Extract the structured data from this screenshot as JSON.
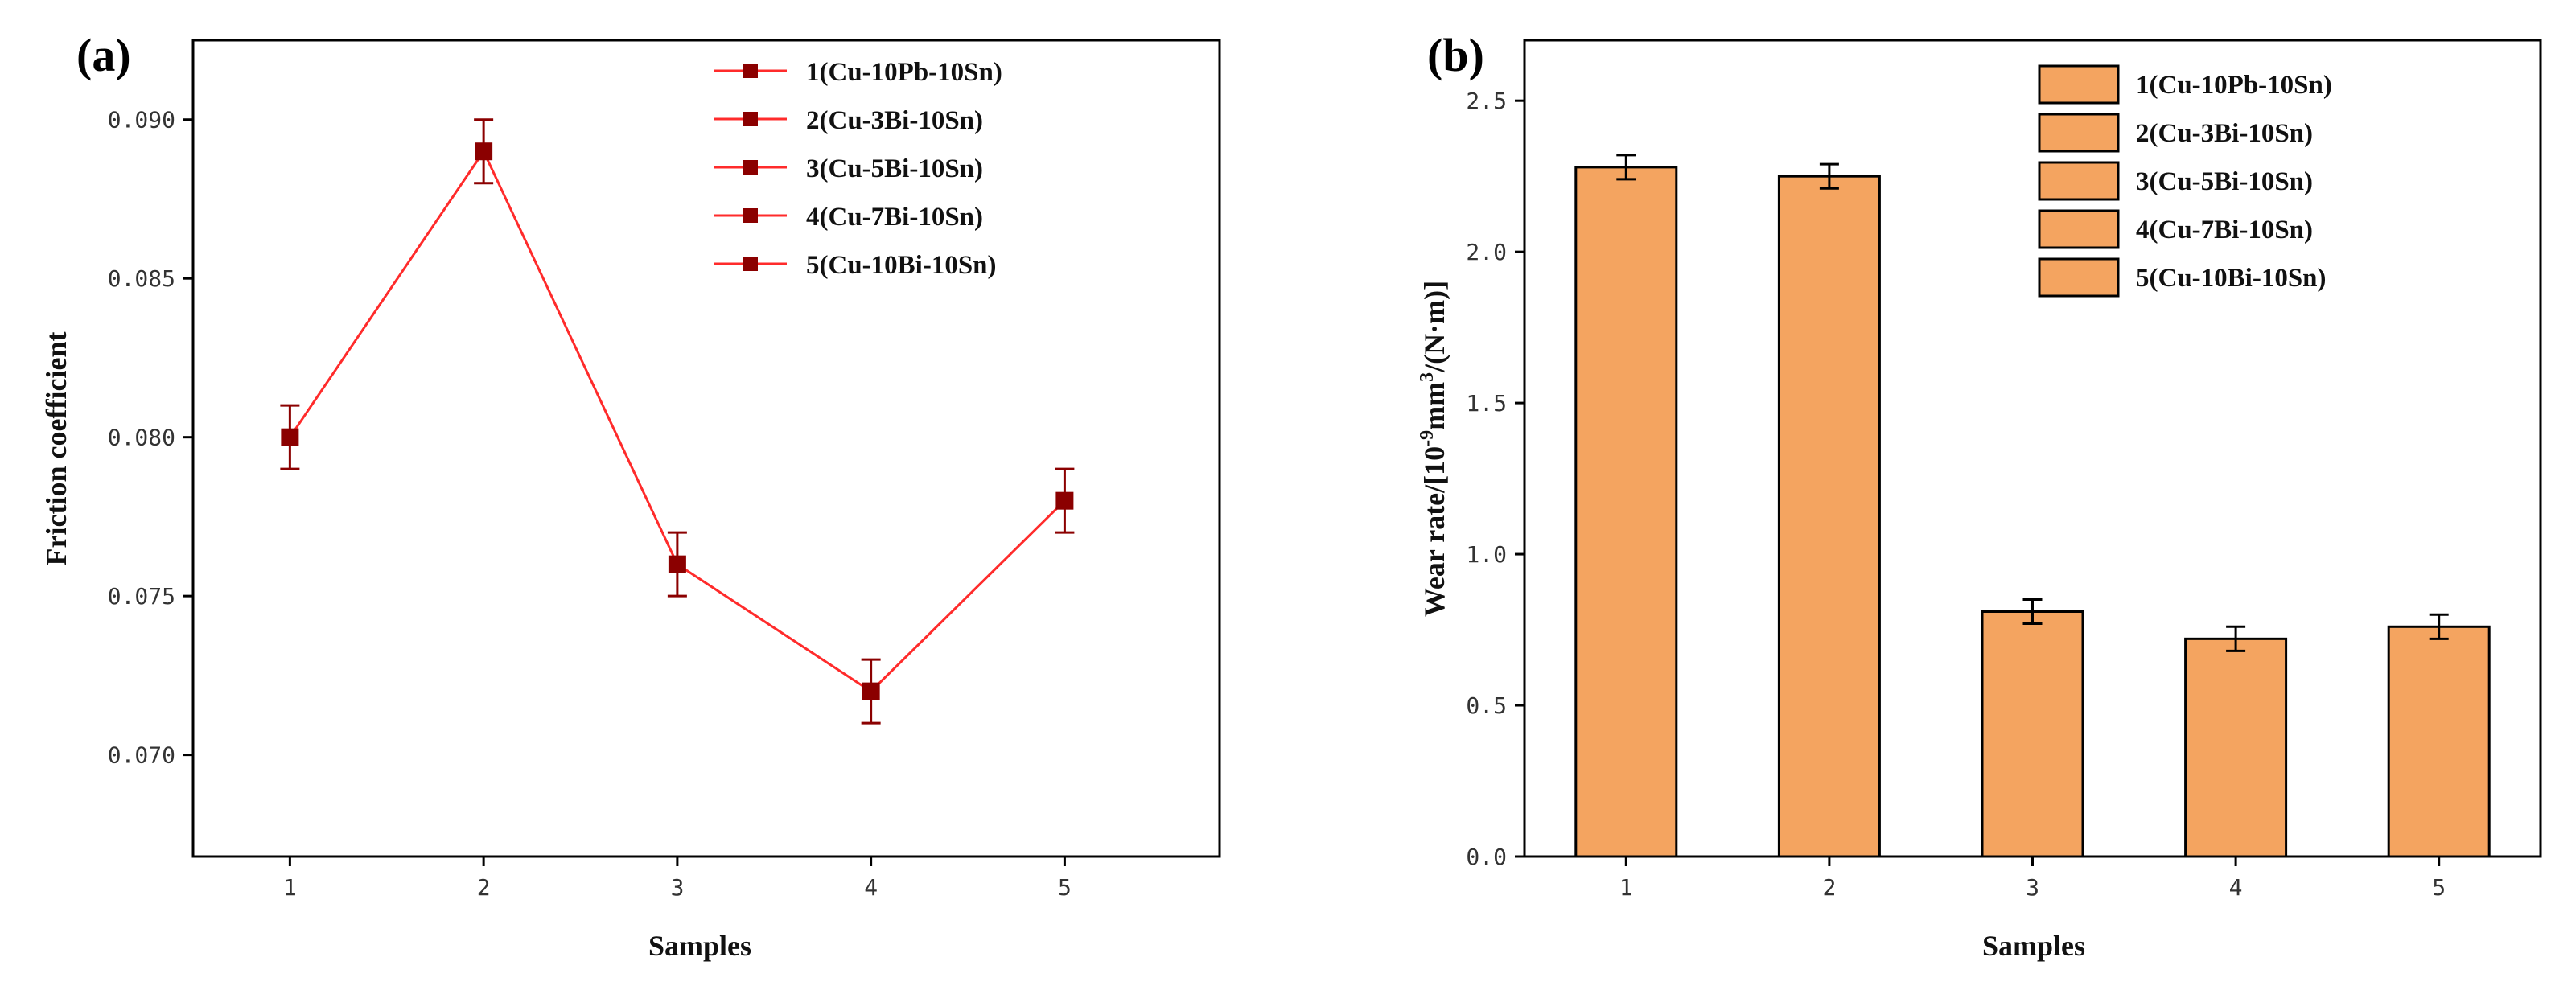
{
  "chart_data": [
    {
      "panel_label": "(a)",
      "type": "line",
      "x": [
        1,
        2,
        3,
        4,
        5
      ],
      "values": [
        0.08,
        0.089,
        0.076,
        0.072,
        0.078
      ],
      "errors": [
        0.001,
        0.001,
        0.001,
        0.001,
        0.001
      ],
      "xlabel": "Samples",
      "ylabel": "Friction coefficient",
      "xticks": [
        "1",
        "2",
        "3",
        "4",
        "5"
      ],
      "yticks": [
        "0.070",
        "0.075",
        "0.080",
        "0.085",
        "0.090"
      ],
      "xlim": [
        0.5,
        5.8
      ],
      "ylim": [
        0.0668,
        0.0925
      ],
      "grid": false,
      "legend_placement": "top-right",
      "legend": [
        "1(Cu-10Pb-10Sn)",
        "2(Cu-3Bi-10Sn)",
        "3(Cu-5Bi-10Sn)",
        "4(Cu-7Bi-10Sn)",
        "5(Cu-10Bi-10Sn)"
      ],
      "line_color": "#ff2b2b",
      "marker_color": "#8b0000"
    },
    {
      "panel_label": "(b)",
      "type": "bar",
      "categories": [
        "1",
        "2",
        "3",
        "4",
        "5"
      ],
      "values": [
        2.28,
        2.25,
        0.81,
        0.72,
        0.76
      ],
      "errors": [
        0.04,
        0.04,
        0.04,
        0.04,
        0.04
      ],
      "xlabel": "Samples",
      "ylabel_parts": [
        "Wear rate/[10",
        "-9",
        "mm",
        "3",
        "/(N·m)]"
      ],
      "yticks": [
        "0.0",
        "0.5",
        "1.0",
        "1.5",
        "2.0",
        "2.5"
      ],
      "ylim": [
        0,
        2.7
      ],
      "grid": false,
      "legend_placement": "top-right",
      "legend": [
        "1(Cu-10Pb-10Sn)",
        "2(Cu-3Bi-10Sn)",
        "3(Cu-5Bi-10Sn)",
        "4(Cu-7Bi-10Sn)",
        "5(Cu-10Bi-10Sn)"
      ],
      "bar_color": "#f4a460"
    }
  ]
}
